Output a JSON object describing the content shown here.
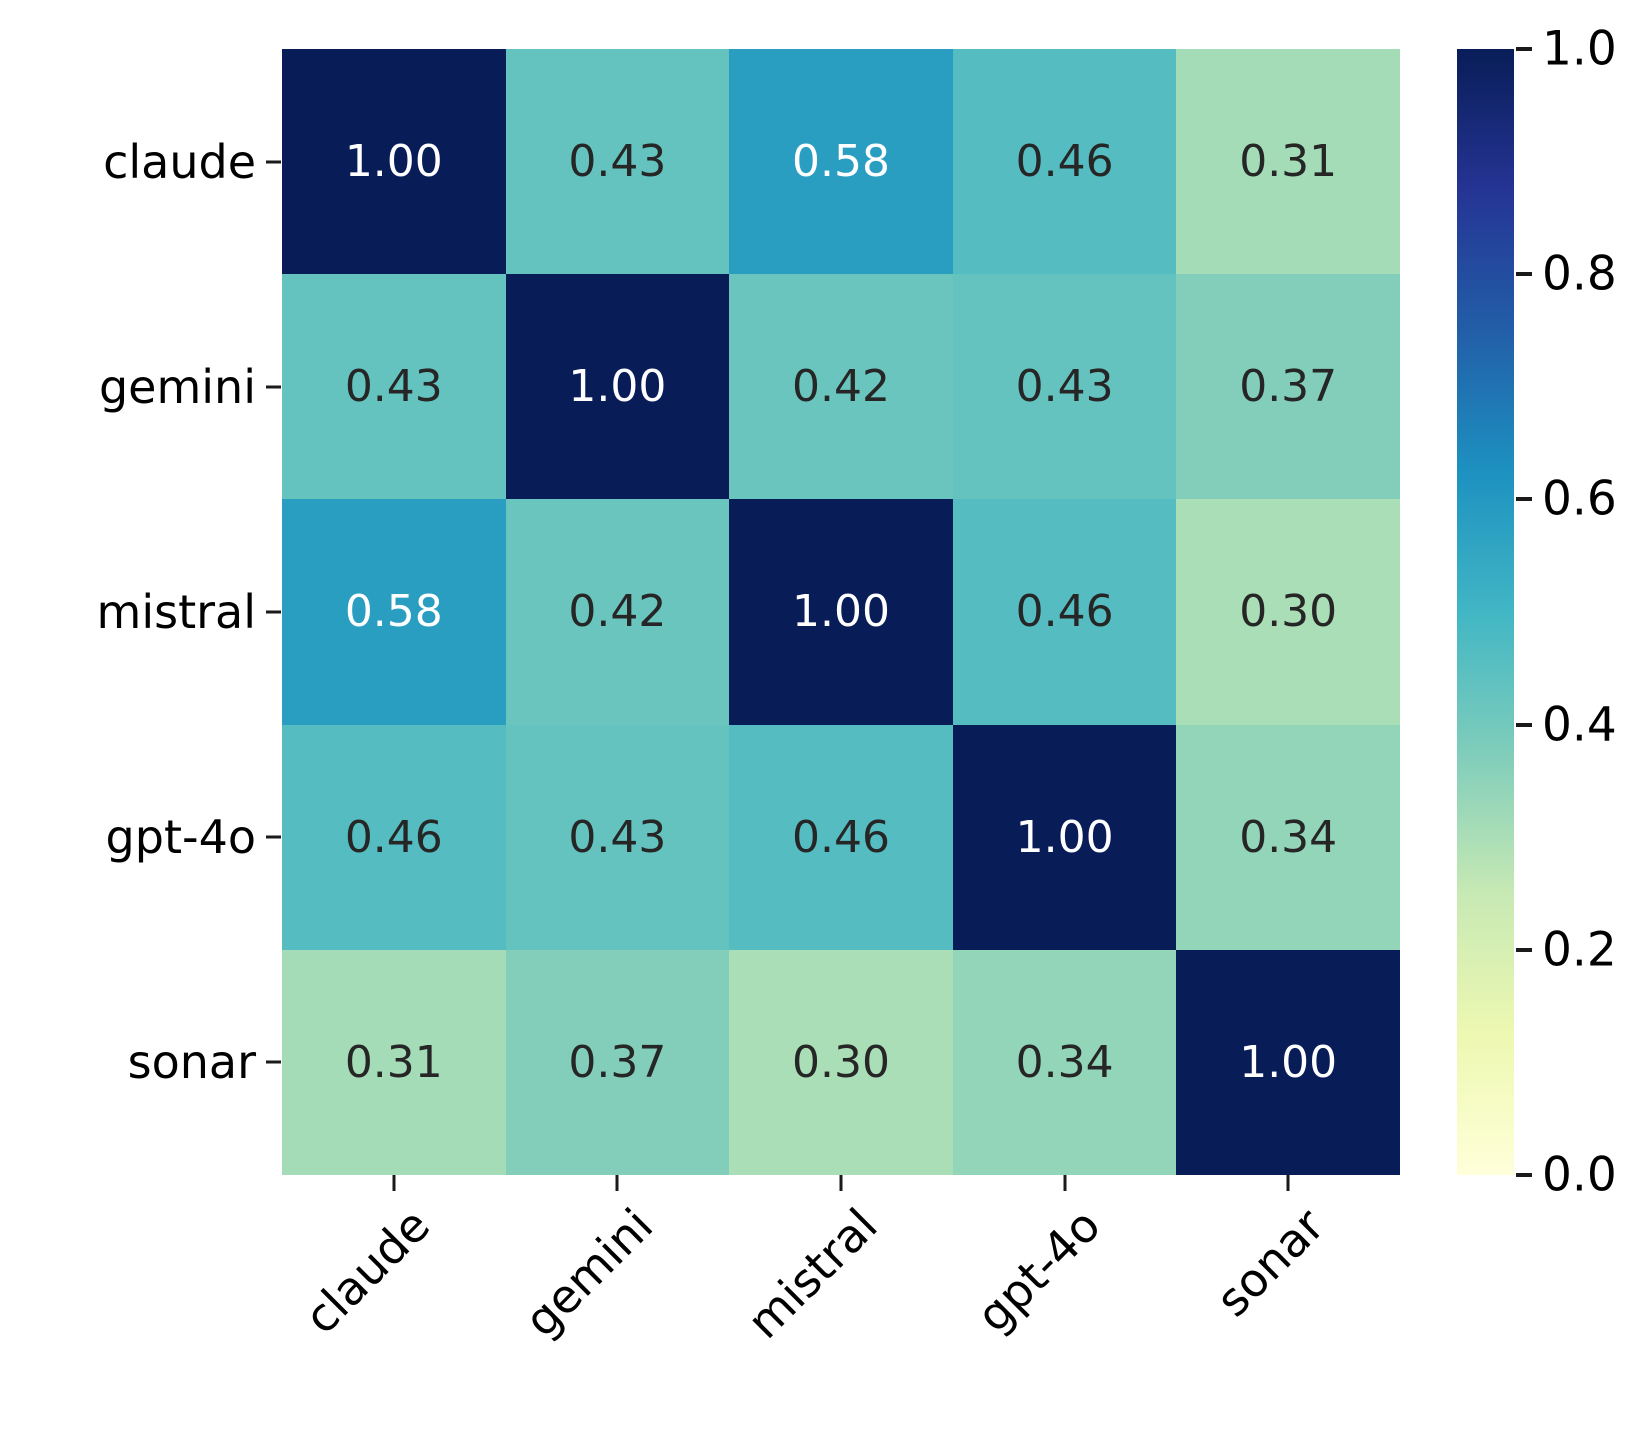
{
  "chart_data": {
    "type": "heatmap",
    "title": "",
    "xlabel": "",
    "ylabel": "",
    "x_categories": [
      "claude",
      "gemini",
      "mistral",
      "gpt-4o",
      "sonar"
    ],
    "y_categories": [
      "claude",
      "gemini",
      "mistral",
      "gpt-4o",
      "sonar"
    ],
    "matrix": [
      [
        1.0,
        0.43,
        0.58,
        0.46,
        0.31
      ],
      [
        0.43,
        1.0,
        0.42,
        0.43,
        0.37
      ],
      [
        0.58,
        0.42,
        1.0,
        0.46,
        0.3
      ],
      [
        0.46,
        0.43,
        0.46,
        1.0,
        0.34
      ],
      [
        0.31,
        0.37,
        0.3,
        0.34,
        1.0
      ]
    ],
    "value_decimals": 2,
    "vmin": 0.0,
    "vmax": 1.0,
    "colormap": {
      "name": "YlGnBu",
      "anchors": [
        {
          "pos": 0.0,
          "color": "#ffffd9"
        },
        {
          "pos": 0.125,
          "color": "#edf8b1"
        },
        {
          "pos": 0.25,
          "color": "#c7e9b4"
        },
        {
          "pos": 0.375,
          "color": "#7fcdbb"
        },
        {
          "pos": 0.5,
          "color": "#41b6c4"
        },
        {
          "pos": 0.625,
          "color": "#1d91c0"
        },
        {
          "pos": 0.75,
          "color": "#225ea8"
        },
        {
          "pos": 0.875,
          "color": "#253494"
        },
        {
          "pos": 1.0,
          "color": "#081d58"
        }
      ]
    },
    "annotation_colors": {
      "light": "#ffffff",
      "dark": "#262626",
      "light_threshold": 0.55
    },
    "colorbar": {
      "position": "right",
      "tick_values": [
        1.0,
        0.8,
        0.6,
        0.4,
        0.2,
        0.0
      ],
      "tick_labels": [
        "1.0",
        "0.8",
        "0.6",
        "0.4",
        "0.2",
        "0.0"
      ]
    },
    "grid": false,
    "legend": false
  }
}
